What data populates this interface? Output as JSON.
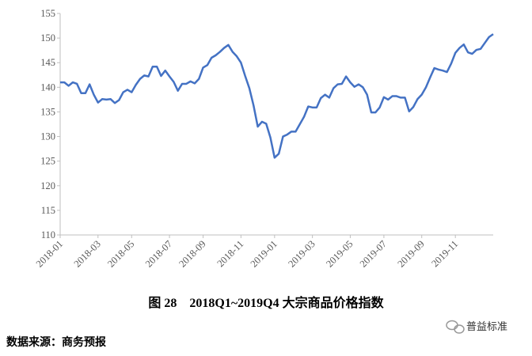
{
  "chart_data": {
    "type": "line",
    "caption": "图 28　2018Q1~2019Q4 大宗商品价格指数",
    "source": "数据来源：商务预报",
    "watermark": "普益标准",
    "categories": [
      "2018-01",
      null,
      null,
      null,
      null,
      null,
      null,
      null,
      null,
      "2018-03",
      null,
      null,
      null,
      null,
      null,
      null,
      null,
      "2018-05",
      null,
      null,
      null,
      null,
      null,
      null,
      null,
      null,
      "2018-07",
      null,
      null,
      null,
      null,
      null,
      null,
      null,
      "2018-09",
      null,
      null,
      null,
      null,
      null,
      null,
      null,
      null,
      "2018-11",
      null,
      null,
      null,
      null,
      null,
      null,
      null,
      "2019-01",
      null,
      null,
      null,
      null,
      null,
      null,
      null,
      null,
      "2019-03",
      null,
      null,
      null,
      null,
      null,
      null,
      null,
      null,
      "2019-05",
      null,
      null,
      null,
      null,
      null,
      null,
      null,
      "2019-07",
      null,
      null,
      null,
      null,
      null,
      null,
      null,
      null,
      "2019-09",
      null,
      null,
      null,
      null,
      null,
      null,
      null,
      "2019-11",
      null,
      null,
      null,
      null,
      null,
      null,
      null,
      null,
      null
    ],
    "values": [
      141,
      141,
      140.3,
      141,
      140.7,
      138.8,
      138.8,
      140.6,
      138.5,
      136.9,
      137.6,
      137.5,
      137.6,
      136.8,
      137.4,
      139,
      139.5,
      139,
      140.5,
      141.7,
      142.4,
      142.2,
      144.2,
      144.2,
      142.3,
      143.4,
      142.2,
      141.1,
      139.3,
      140.7,
      140.7,
      141.2,
      140.8,
      141.7,
      144,
      144.5,
      146,
      146.5,
      147.2,
      148,
      148.6,
      147.2,
      146.3,
      145,
      142.3,
      139.8,
      136.3,
      132,
      133,
      132.6,
      129.8,
      125.7,
      126.5,
      130,
      130.4,
      131,
      131,
      132.5,
      134,
      136.1,
      135.9,
      135.9,
      137.8,
      138.5,
      137.9,
      139.8,
      140.6,
      140.7,
      142.2,
      141,
      140.1,
      140.6,
      140,
      138.5,
      134.9,
      134.9,
      135.9,
      138,
      137.5,
      138.2,
      138.2,
      137.9,
      137.9,
      135.1,
      136,
      137.6,
      138.5,
      140,
      142,
      143.9,
      143.6,
      143.4,
      143.1,
      144.8,
      147,
      148,
      148.7,
      147.1,
      146.8,
      147.6,
      147.8,
      149,
      150.2,
      150.8
    ],
    "color": "#4472c4",
    "ylim": [
      110,
      155
    ],
    "yticks": [
      110,
      115,
      120,
      125,
      130,
      135,
      140,
      145,
      150,
      155
    ],
    "grid": false
  }
}
